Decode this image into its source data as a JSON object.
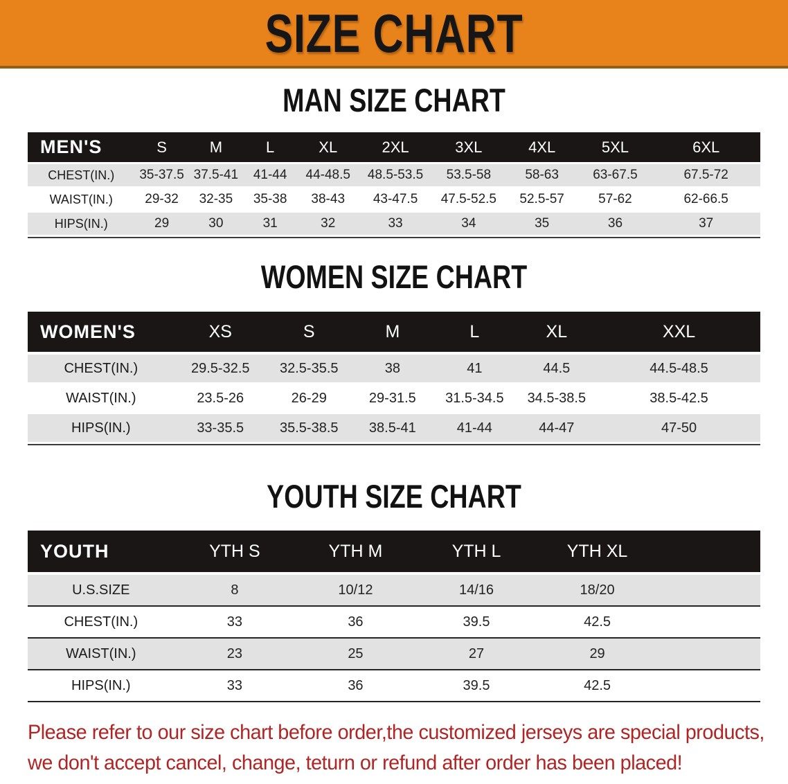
{
  "banner": {
    "title": "SIZE CHART"
  },
  "sections": [
    {
      "heading": "MAN SIZE CHART",
      "table": {
        "header": [
          "MEN'S",
          "S",
          "M",
          "L",
          "XL",
          "2XL",
          "3XL",
          "4XL",
          "5XL",
          "6XL"
        ],
        "rows": [
          {
            "label": "CHEST(IN.)",
            "values": [
              "35-37.5",
              "37.5-41",
              "41-44",
              "44-48.5",
              "48.5-53.5",
              "53.5-58",
              "58-63",
              "63-67.5",
              "67.5-72"
            ]
          },
          {
            "label": "WAIST(IN.)",
            "values": [
              "29-32",
              "32-35",
              "35-38",
              "38-43",
              "43-47.5",
              "47.5-52.5",
              "52.5-57",
              "57-62",
              "62-66.5"
            ]
          },
          {
            "label": "HIPS(IN.)",
            "values": [
              "29",
              "30",
              "31",
              "32",
              "33",
              "34",
              "35",
              "36",
              "37"
            ]
          }
        ]
      }
    },
    {
      "heading": "WOMEN SIZE CHART",
      "table": {
        "header": [
          "WOMEN'S",
          "XS",
          "S",
          "M",
          "L",
          "XL",
          "XXL"
        ],
        "rows": [
          {
            "label": "CHEST(IN.)",
            "values": [
              "29.5-32.5",
              "32.5-35.5",
              "38",
              "41",
              "44.5",
              "44.5-48.5"
            ]
          },
          {
            "label": "WAIST(IN.)",
            "values": [
              "23.5-26",
              "26-29",
              "29-31.5",
              "31.5-34.5",
              "34.5-38.5",
              "38.5-42.5"
            ]
          },
          {
            "label": "HIPS(IN.)",
            "values": [
              "33-35.5",
              "35.5-38.5",
              "38.5-41",
              "41-44",
              "44-47",
              "47-50"
            ]
          }
        ]
      }
    },
    {
      "heading": "YOUTH SIZE CHART",
      "table": {
        "header": [
          "YOUTH",
          "YTH S",
          "YTH M",
          "YTH L",
          "YTH XL"
        ],
        "rows": [
          {
            "label": "U.S.SIZE",
            "values": [
              "8",
              "10/12",
              "14/16",
              "18/20"
            ]
          },
          {
            "label": "CHEST(IN.)",
            "values": [
              "33",
              "36",
              "39.5",
              "42.5"
            ]
          },
          {
            "label": "WAIST(IN.)",
            "values": [
              "23",
              "25",
              "27",
              "29"
            ]
          },
          {
            "label": "HIPS(IN.)",
            "values": [
              "33",
              "36",
              "39.5",
              "42.5"
            ]
          }
        ]
      }
    }
  ],
  "footer": {
    "line1": "Please refer to our size chart before order,the customized jerseys are special products,",
    "line2": "we don't accept cancel, change, teturn or refund after order has been placed!"
  },
  "colors": {
    "banner_orange": "#E8831C",
    "band_black": "#1A1615",
    "row_gray": "#E2E2E2",
    "disclaimer_red": "#B12424"
  }
}
